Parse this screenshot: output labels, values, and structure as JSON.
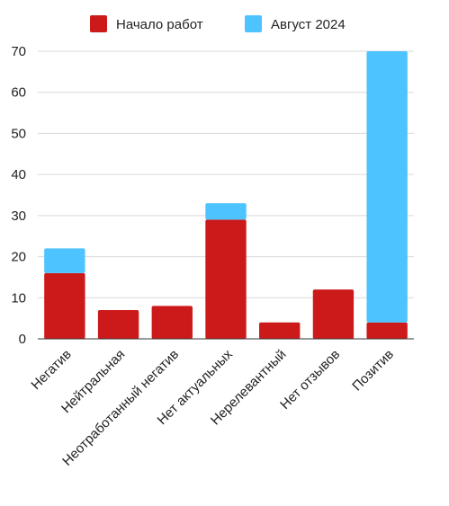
{
  "chart_data": {
    "type": "bar",
    "stacked": true,
    "categories": [
      "Негатив",
      "Нейтральная",
      "Неотработанный негатив",
      "Нет актуальных",
      "Нерелевантный",
      "Нет отзывов",
      "Позитив"
    ],
    "series": [
      {
        "name": "Начало работ",
        "color": "#cc1a1a",
        "values": [
          16,
          7,
          8,
          29,
          4,
          12,
          4
        ]
      },
      {
        "name": "Август 2024",
        "color": "#4dc3ff",
        "values": [
          6,
          0,
          0,
          4,
          0,
          0,
          66
        ]
      }
    ],
    "ylim": [
      0,
      70
    ],
    "yticks": [
      0,
      10,
      20,
      30,
      40,
      50,
      60,
      70
    ],
    "grid": true,
    "legend_position": "top"
  }
}
